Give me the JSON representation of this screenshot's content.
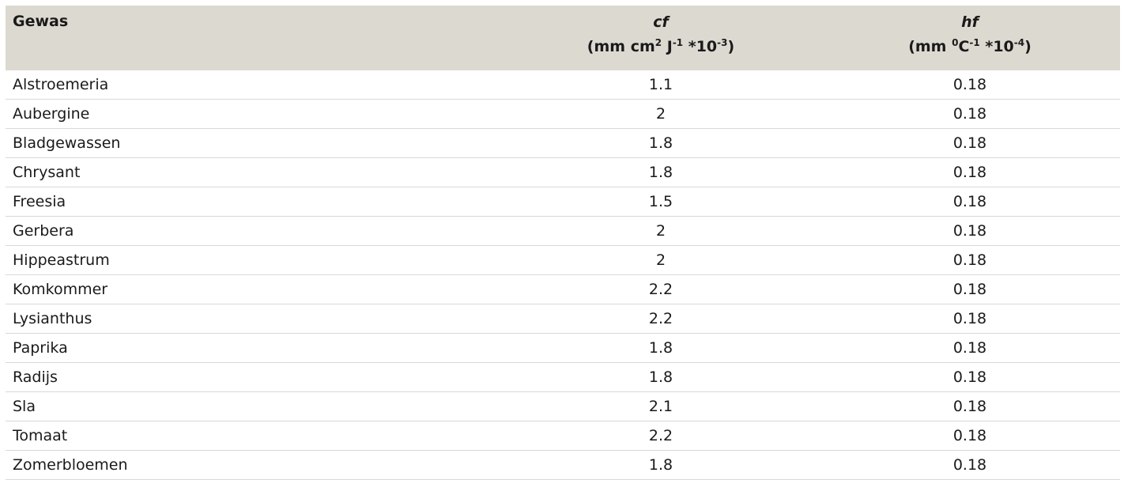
{
  "table": {
    "headers": {
      "crop": "Gewas",
      "cf": {
        "symbol": "cf",
        "unit_pre": "(mm cm",
        "unit_sup1": "2",
        "unit_mid1": " J",
        "unit_sup2": "-1",
        "unit_mid2": " *10",
        "unit_sup3": "-3",
        "unit_post": ")"
      },
      "hf": {
        "symbol": "hf",
        "unit_pre": "(mm ",
        "unit_sup1": "0",
        "unit_mid1": "C",
        "unit_sup2": "-1",
        "unit_mid2": " *10",
        "unit_sup3": "-4",
        "unit_post": ")"
      }
    },
    "rows": [
      {
        "crop": "Alstroemeria",
        "cf": "1.1",
        "hf": "0.18"
      },
      {
        "crop": "Aubergine",
        "cf": "2",
        "hf": "0.18"
      },
      {
        "crop": "Bladgewassen",
        "cf": "1.8",
        "hf": "0.18"
      },
      {
        "crop": "Chrysant",
        "cf": "1.8",
        "hf": "0.18"
      },
      {
        "crop": "Freesia",
        "cf": "1.5",
        "hf": "0.18"
      },
      {
        "crop": "Gerbera",
        "cf": "2",
        "hf": "0.18"
      },
      {
        "crop": "Hippeastrum",
        "cf": "2",
        "hf": "0.18"
      },
      {
        "crop": "Komkommer",
        "cf": "2.2",
        "hf": "0.18"
      },
      {
        "crop": "Lysianthus",
        "cf": "2.2",
        "hf": "0.18"
      },
      {
        "crop": "Paprika",
        "cf": "1.8",
        "hf": "0.18"
      },
      {
        "crop": "Radijs",
        "cf": "1.8",
        "hf": "0.18"
      },
      {
        "crop": "Sla",
        "cf": "2.1",
        "hf": "0.18"
      },
      {
        "crop": "Tomaat",
        "cf": "2.2",
        "hf": "0.18"
      },
      {
        "crop": "Zomerbloemen",
        "cf": "1.8",
        "hf": "0.18"
      }
    ]
  },
  "colors": {
    "header_background": "#dcd9d0",
    "row_divider": "#d8d8d8"
  }
}
